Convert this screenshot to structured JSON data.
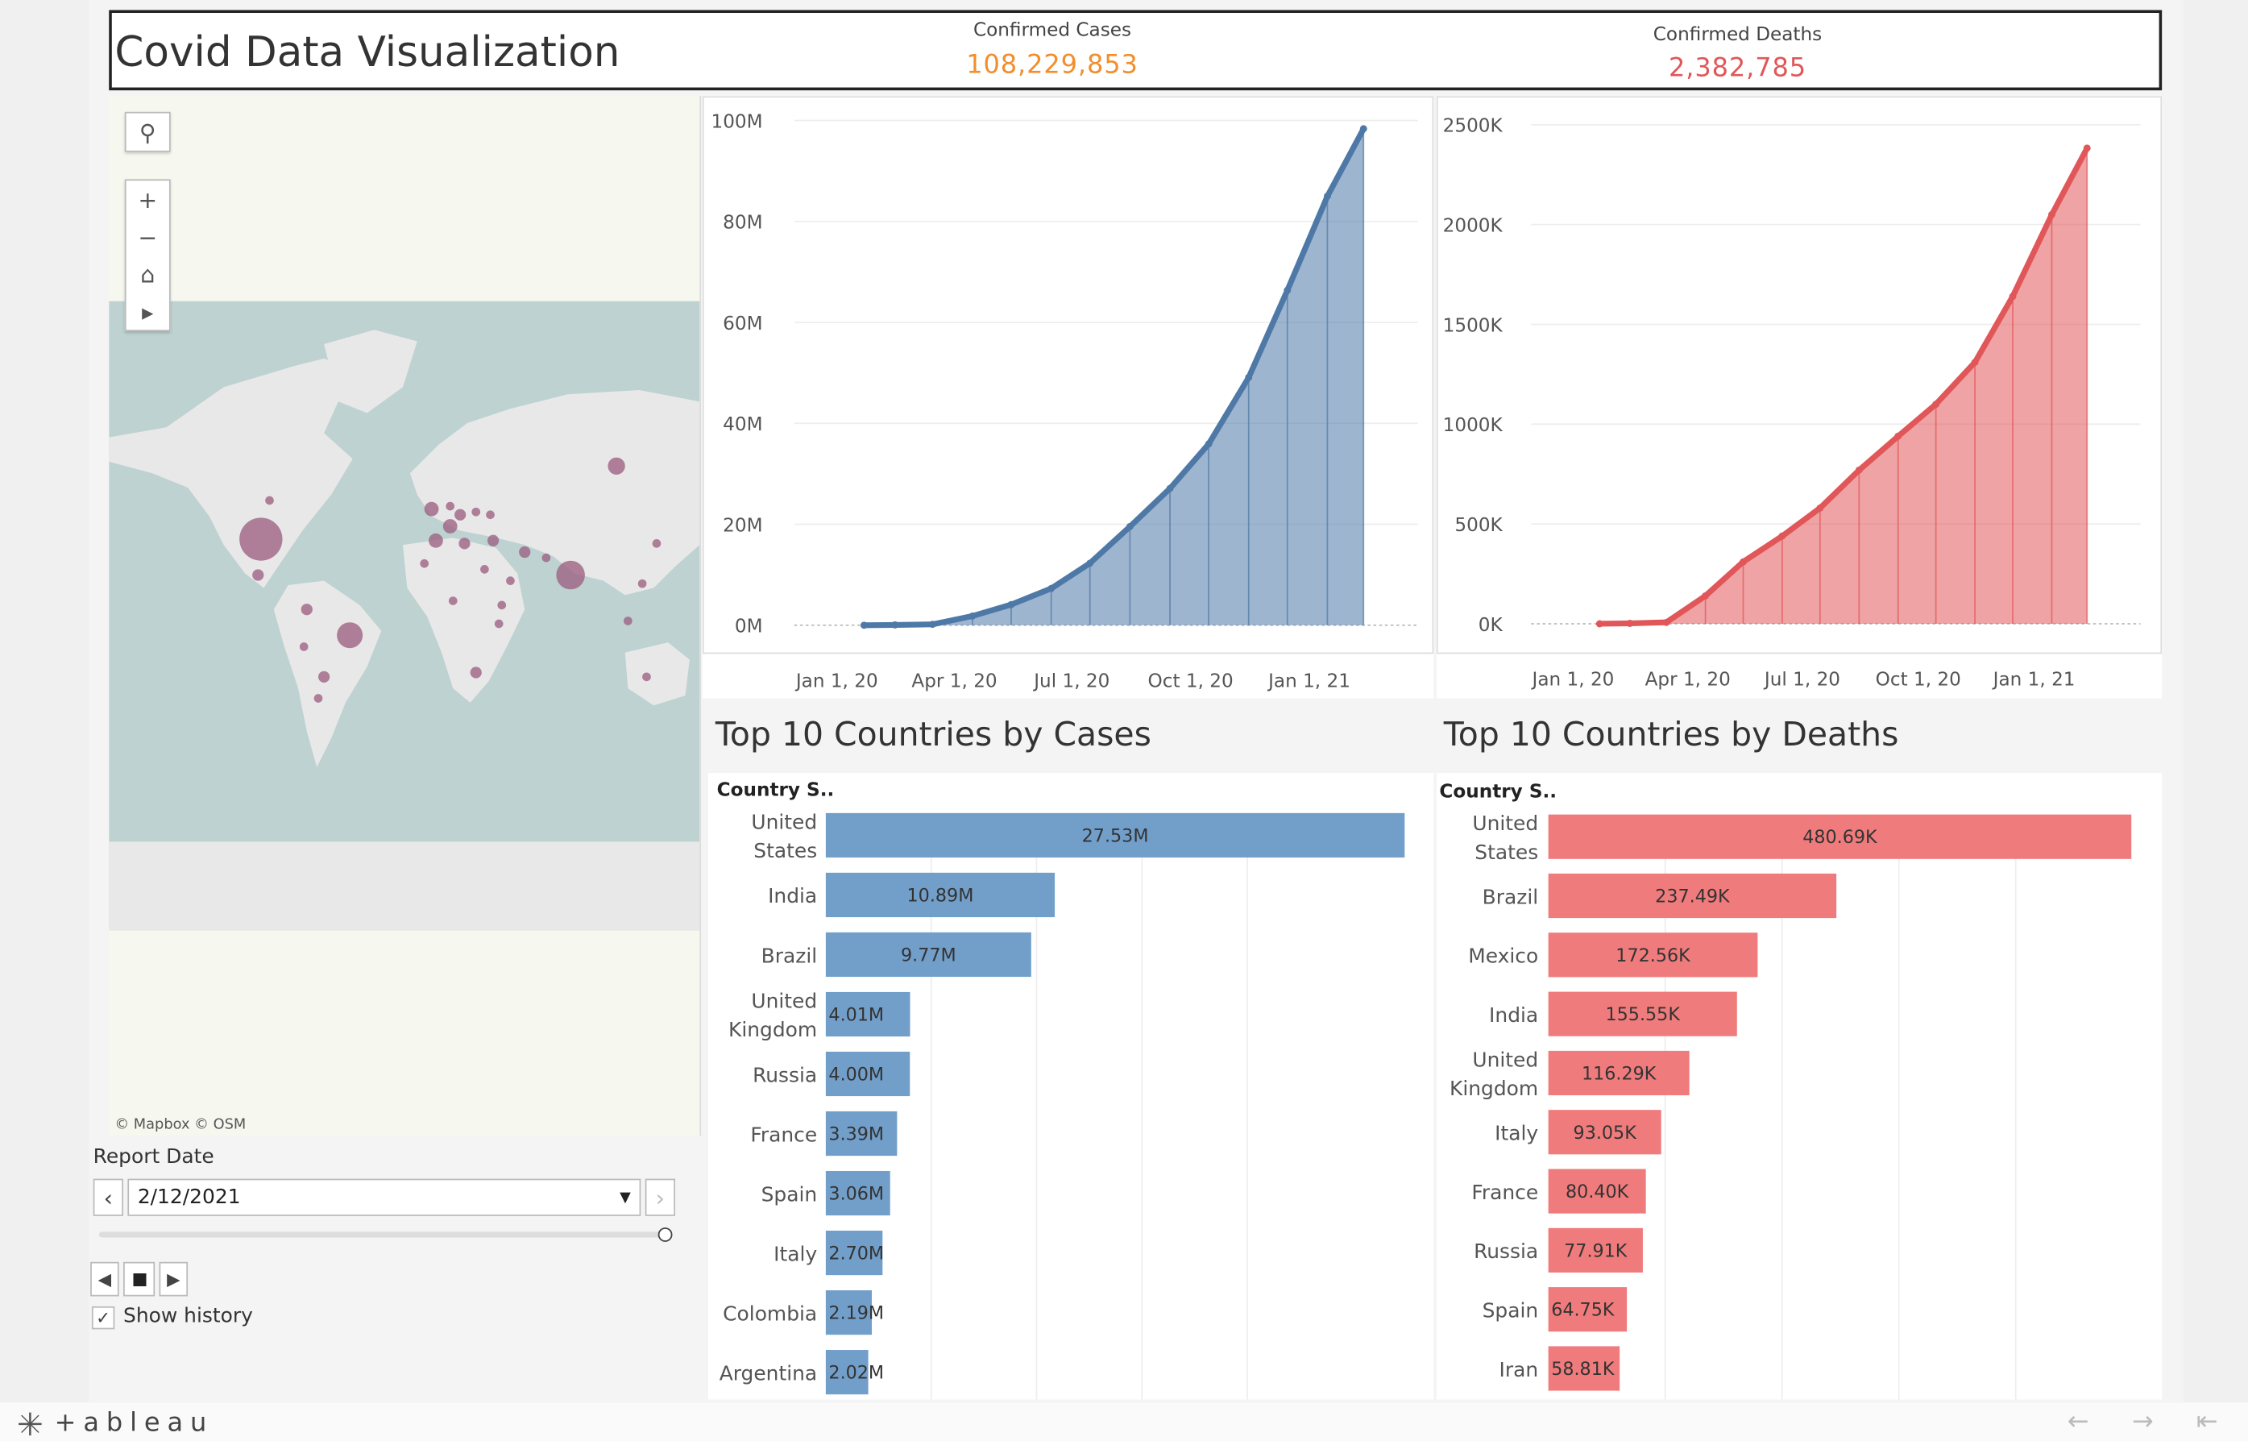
{
  "header": {
    "title": "Covid Data Visualization",
    "cases_label": "Confirmed Cases",
    "cases_value": "108,229,853",
    "deaths_label": "Confirmed Deaths",
    "deaths_value": "2,382,785"
  },
  "colors": {
    "cases": "#4e79a7",
    "cases_bar": "#729fca",
    "deaths": "#e15759",
    "deaths_bar": "#f07b7c",
    "cases_kpi": "#f28e2b",
    "deaths_kpi": "#e15759",
    "map_dot": "#9b5b7e"
  },
  "map": {
    "attribution": "© Mapbox  © OSM",
    "controls": [
      "search-icon",
      "zoom-in-icon",
      "zoom-out-icon",
      "home-icon",
      "play-icon"
    ]
  },
  "report": {
    "label": "Report Date",
    "date_value": "2/12/2021",
    "prev_glyph": "‹",
    "next_glyph": "›",
    "show_history_label": "Show history",
    "show_history_checked": true
  },
  "sections": {
    "cases_title": "Top 10 Countries by Cases",
    "deaths_title": "Top 10 Countries by Deaths",
    "column_header": "Country S.."
  },
  "footer": {
    "brand": "+ableau"
  },
  "chart_data": [
    {
      "type": "area",
      "name": "cumulative-cases",
      "x": [
        "2020-01-22",
        "2020-02-15",
        "2020-03-15",
        "2020-04-15",
        "2020-05-15",
        "2020-06-15",
        "2020-07-15",
        "2020-08-15",
        "2020-09-15",
        "2020-10-15",
        "2020-11-15",
        "2020-12-15",
        "2021-01-15",
        "2021-02-12"
      ],
      "values": [
        0.0006,
        0.07,
        0.2,
        2.0,
        4.5,
        8.0,
        13.5,
        21.5,
        29.8,
        39.5,
        54.0,
        73.0,
        93.5,
        108.2
      ],
      "unit": "M",
      "y_ticks": [
        "0M",
        "20M",
        "40M",
        "60M",
        "80M",
        "100M"
      ],
      "ylim": [
        0,
        110
      ],
      "x_tick_labels": [
        "Jan 1, 20",
        "Apr 1, 20",
        "Jul 1, 20",
        "Oct 1, 20",
        "Jan 1, 21"
      ],
      "x_ticks": [
        "2020-01-01",
        "2020-04-01",
        "2020-07-01",
        "2020-10-01",
        "2021-01-01"
      ],
      "xlim": [
        "2019-12-10",
        "2021-03-15"
      ],
      "grid": true
    },
    {
      "type": "area",
      "name": "cumulative-deaths",
      "x": [
        "2020-01-22",
        "2020-02-15",
        "2020-03-15",
        "2020-04-15",
        "2020-05-15",
        "2020-06-15",
        "2020-07-15",
        "2020-08-15",
        "2020-09-15",
        "2020-10-15",
        "2020-11-15",
        "2020-12-15",
        "2021-01-15",
        "2021-02-12"
      ],
      "values": [
        0.02,
        2,
        7,
        140,
        310,
        440,
        580,
        770,
        940,
        1100,
        1310,
        1640,
        2050,
        2382.8
      ],
      "unit": "K",
      "y_ticks": [
        "0K",
        "500K",
        "1000K",
        "1500K",
        "2000K",
        "2500K"
      ],
      "ylim": [
        0,
        2500
      ],
      "x_tick_labels": [
        "Jan 1, 20",
        "Apr 1, 20",
        "Jul 1, 20",
        "Oct 1, 20",
        "Jan 1, 21"
      ],
      "x_ticks": [
        "2020-01-01",
        "2020-04-01",
        "2020-07-01",
        "2020-10-01",
        "2021-01-01"
      ],
      "xlim": [
        "2019-12-10",
        "2021-03-15"
      ],
      "grid": true
    },
    {
      "type": "bar",
      "name": "top-10-cases",
      "title": "Top 10 Countries by Cases",
      "categories": [
        "United States",
        "India",
        "Brazil",
        "United Kingdom",
        "Russia",
        "France",
        "Spain",
        "Italy",
        "Colombia",
        "Argentina"
      ],
      "values": [
        27.53,
        10.89,
        9.77,
        4.01,
        4.0,
        3.39,
        3.06,
        2.7,
        2.19,
        2.02
      ],
      "labels": [
        "27.53M",
        "10.89M",
        "9.77M",
        "4.01M",
        "4.00M",
        "3.39M",
        "3.06M",
        "2.70M",
        "2.19M",
        "2.02M"
      ],
      "xlim": [
        0,
        30
      ]
    },
    {
      "type": "bar",
      "name": "top-10-deaths",
      "title": "Top 10 Countries by Deaths",
      "categories": [
        "United States",
        "Brazil",
        "Mexico",
        "India",
        "United Kingdom",
        "Italy",
        "France",
        "Russia",
        "Spain",
        "Iran"
      ],
      "values": [
        480.69,
        237.49,
        172.56,
        155.55,
        116.29,
        93.05,
        80.4,
        77.91,
        64.75,
        58.81
      ],
      "labels": [
        "480.69K",
        "237.49K",
        "172.56K",
        "155.55K",
        "116.29K",
        "93.05K",
        "80.40K",
        "77.91K",
        "64.75K",
        "58.81K"
      ],
      "xlim": [
        0,
        500
      ]
    }
  ]
}
